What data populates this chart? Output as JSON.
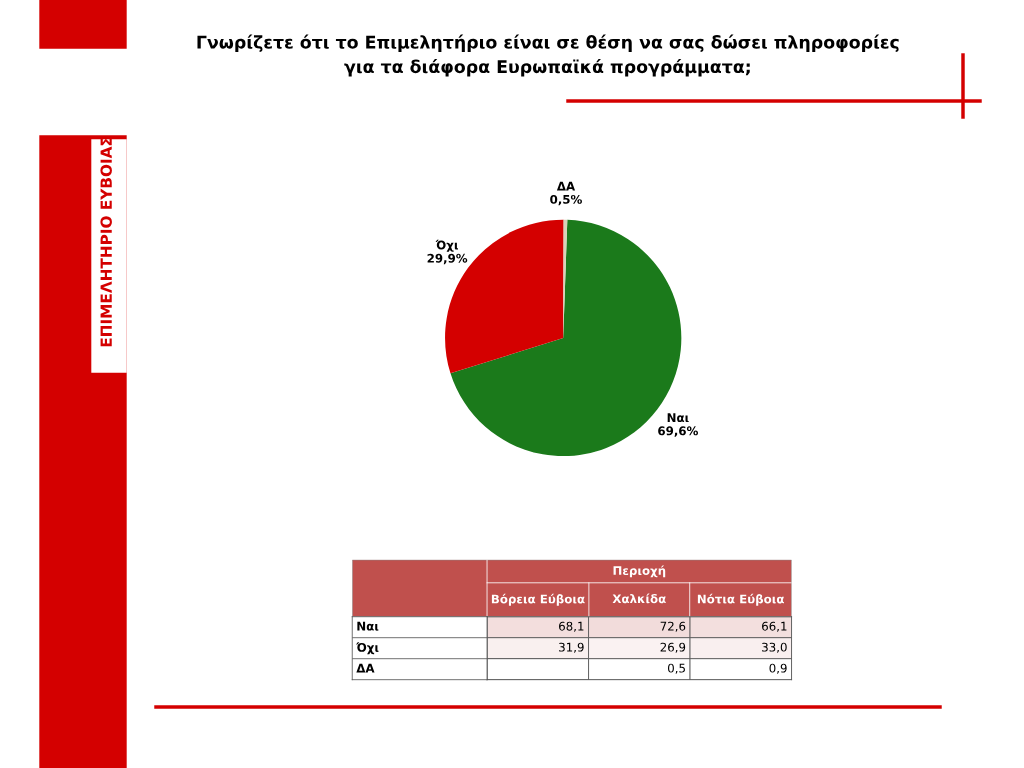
{
  "chart_data": [
    {
      "type": "pie",
      "title": "Γνωρίζετε ότι το Επιμελητήριο είναι σε θέση να σας δώσει πληροφορίες\nγια τα διάφορα Ευρωπαϊκά προγράμματα;",
      "categories": [
        "Ναι",
        "Όχι",
        "ΔΑ"
      ],
      "values": [
        69.6,
        29.9,
        0.5
      ],
      "value_labels": [
        "69,6%",
        "29,9%",
        "0,5%"
      ],
      "colors": [
        "#1b7a1b",
        "#d40000",
        "#d9d2b8"
      ],
      "annotations": [
        "ΕΠΙΜΕΛΗΤΗΡΙΟ ΕΥΒΟΙΑΣ"
      ]
    },
    {
      "type": "heatmap",
      "title": "Περιοχή",
      "categories": [
        "Βόρεια Εύβοια",
        "Χαλκίδα",
        "Νότια Εύβοια"
      ],
      "y_categories": [
        "Ναι",
        "Όχι",
        "ΔΑ"
      ],
      "cells": [
        [
          68.1,
          72.6,
          66.1
        ],
        [
          31.9,
          26.9,
          33.0
        ],
        [
          null,
          0.5,
          0.9
        ]
      ],
      "cell_labels": [
        [
          "68,1",
          "72,6",
          "66,1"
        ],
        [
          "31,9",
          "26,9",
          "33,0"
        ],
        [
          null,
          "0,5",
          "0,9"
        ]
      ]
    }
  ]
}
